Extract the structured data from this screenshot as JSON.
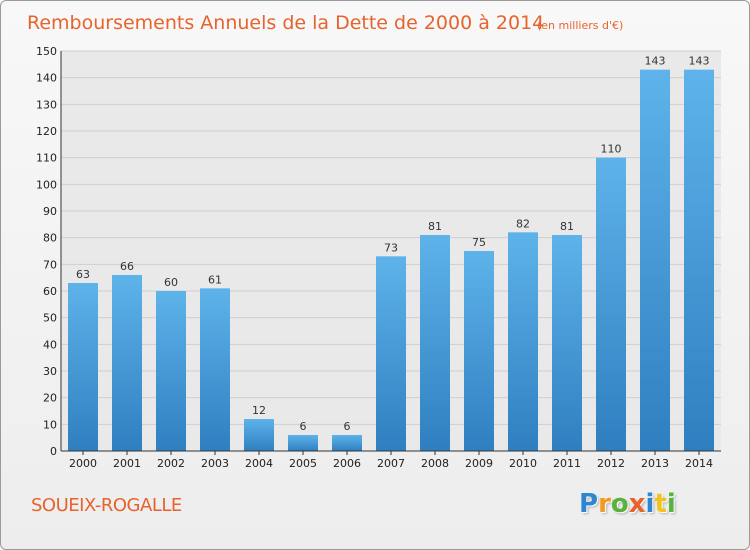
{
  "chart_data": {
    "type": "bar",
    "title": "Remboursements Annuels de la Dette de 2000 à 2014",
    "subtitle": "(en milliers d'€)",
    "categories": [
      "2000",
      "2001",
      "2002",
      "2003",
      "2004",
      "2005",
      "2006",
      "2007",
      "2008",
      "2009",
      "2010",
      "2011",
      "2012",
      "2013",
      "2014"
    ],
    "values": [
      63,
      66,
      60,
      61,
      12,
      6,
      6,
      73,
      81,
      75,
      82,
      81,
      110,
      143,
      143
    ],
    "ylim": [
      0,
      150
    ],
    "yticks": [
      0,
      10,
      20,
      30,
      40,
      50,
      60,
      70,
      80,
      90,
      100,
      110,
      120,
      130,
      140,
      150
    ],
    "grid": true,
    "bar_color": "#4a9fdc"
  },
  "commune": "SOUEIX-ROGALLE",
  "logo": {
    "letters": [
      {
        "char": "P",
        "color": "#2f86d0"
      },
      {
        "char": "r",
        "color": "#f29a1f"
      },
      {
        "char": "o",
        "color": "#59b33b"
      },
      {
        "char": "x",
        "color": "#e8632c"
      },
      {
        "char": "i",
        "color": "#2f86d0"
      },
      {
        "char": "t",
        "color": "#f2c21f"
      },
      {
        "char": "i",
        "color": "#59b33b"
      }
    ]
  }
}
